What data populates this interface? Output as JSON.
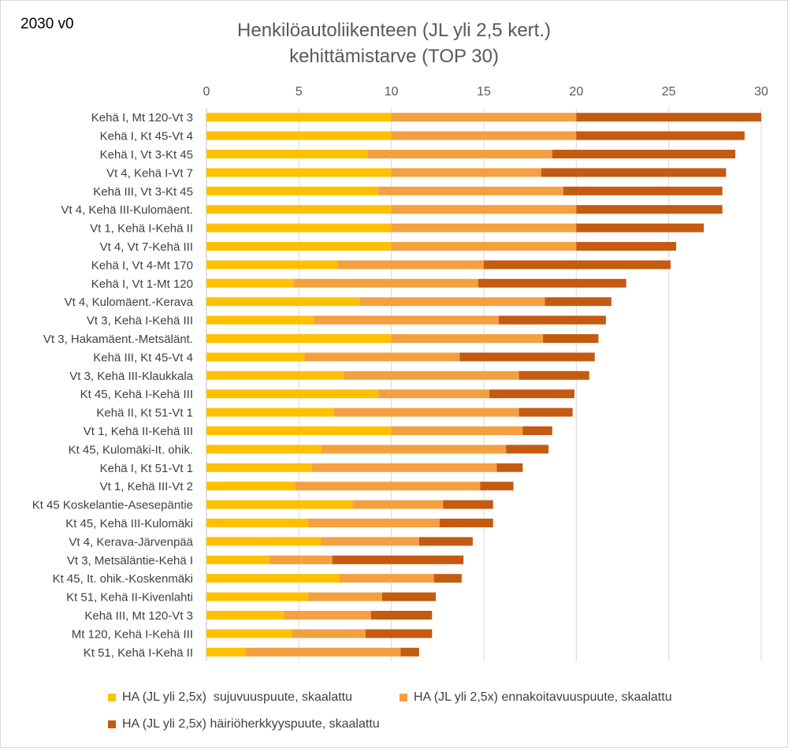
{
  "version_label": "2030 v0",
  "title_line1": "Henkilöautoliikenteen (JL yli 2,5 kert.)",
  "title_line2": "kehittämistarve (TOP 30)",
  "colors": {
    "sujuvuus": "#ffc000",
    "ennakoitavuus": "#f4a040",
    "hairio": "#c55a11",
    "grid": "#d9d9d9"
  },
  "chart_data": {
    "type": "bar",
    "orientation": "horizontal",
    "stacked": true,
    "xlim": [
      0,
      30
    ],
    "xticks": [
      0,
      5,
      10,
      15,
      20,
      25,
      30
    ],
    "grid": true,
    "legend_position": "bottom",
    "categories": [
      "Kehä I, Mt 120-Vt 3",
      "Kehä I, Kt 45-Vt 4",
      "Kehä I, Vt 3-Kt 45",
      "Vt 4, Kehä I-Vt 7",
      "Kehä III, Vt 3-Kt 45",
      "Vt 4, Kehä III-Kulomäent.",
      "Vt 1, Kehä I-Kehä II",
      "Vt 4, Vt 7-Kehä III",
      "Kehä I, Vt 4-Mt 170",
      "Kehä I, Vt 1-Mt 120",
      "Vt 4, Kulomäent.-Kerava",
      "Vt 3, Kehä I-Kehä III",
      "Vt 3, Hakamäent.-Metsälänt.",
      "Kehä III, Kt 45-Vt 4",
      "Vt 3, Kehä III-Klaukkala",
      "Kt 45, Kehä I-Kehä III",
      "Kehä II, Kt 51-Vt 1",
      "Vt 1, Kehä II-Kehä III",
      "Kt 45, Kulomäki-It. ohik.",
      "Kehä I, Kt 51-Vt 1",
      "Vt 1, Kehä III-Vt 2",
      "Kt 45 Koskelantie-Asesepäntie",
      "Kt 45, Kehä III-Kulomäki",
      "Vt 4, Kerava-Järvenpää",
      "Vt 3, Metsäläntie-Kehä I",
      "Kt 45, It. ohik.-Koskenmäki",
      "Kt 51, Kehä II-Kivenlahti",
      "Kehä III, Mt 120-Vt 3",
      "Mt 120, Kehä I-Kehä III",
      "Kt 51, Kehä I-Kehä II"
    ],
    "series": [
      {
        "name": "HA (JL yli 2,5x)  sujuvuuspuute, skaalattu",
        "values": [
          10,
          10,
          8.7,
          10,
          9.3,
          10,
          10,
          10,
          7.1,
          4.7,
          8.3,
          5.8,
          10,
          5.3,
          7.4,
          9.3,
          6.9,
          10,
          6.2,
          5.7,
          4.8,
          7.9,
          5.5,
          6.2,
          3.4,
          7.2,
          5.5,
          4.2,
          4.6,
          2.1
        ]
      },
      {
        "name": "HA (JL yli 2,5x) ennakoitavuuspuute, skaalattu",
        "values": [
          10,
          10,
          10,
          8.1,
          10,
          10,
          10,
          10,
          7.9,
          10,
          10,
          10,
          8.2,
          8.4,
          9.5,
          6,
          10,
          7.1,
          10,
          10,
          10,
          4.9,
          7.1,
          5.3,
          3.4,
          5.1,
          4,
          4.7,
          4,
          8.4
        ]
      },
      {
        "name": "HA (JL yli 2,5x) häiriöherkkyyspuute, skaalattu",
        "values": [
          10,
          9.1,
          9.9,
          10,
          8.6,
          7.9,
          6.9,
          5.4,
          10.1,
          8,
          3.6,
          5.8,
          3,
          7.3,
          3.8,
          4.6,
          2.9,
          1.6,
          2.3,
          1.4,
          1.8,
          2.7,
          2.9,
          2.9,
          7.1,
          1.5,
          2.9,
          3.3,
          3.6,
          1
        ]
      }
    ]
  }
}
